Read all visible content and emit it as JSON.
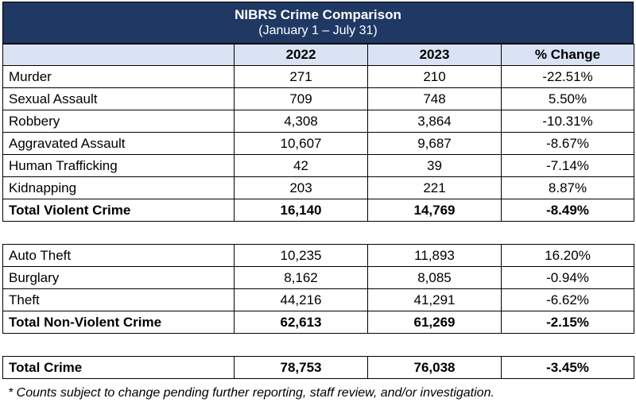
{
  "title": "NIBRS Crime Comparison",
  "subtitle": "(January 1 – July 31)",
  "chart_data": {
    "type": "table",
    "columns": [
      "",
      "2022",
      "2023",
      "% Change"
    ],
    "groups": [
      {
        "rows": [
          {
            "label": "Murder",
            "v2022": "271",
            "v2023": "210",
            "change": "-22.51%"
          },
          {
            "label": "Sexual Assault",
            "v2022": "709",
            "v2023": "748",
            "change": "5.50%"
          },
          {
            "label": "Robbery",
            "v2022": "4,308",
            "v2023": "3,864",
            "change": "-10.31%"
          },
          {
            "label": "Aggravated Assault",
            "v2022": "10,607",
            "v2023": "9,687",
            "change": "-8.67%"
          },
          {
            "label": "Human Trafficking",
            "v2022": "42",
            "v2023": "39",
            "change": "-7.14%"
          },
          {
            "label": "Kidnapping",
            "v2022": "203",
            "v2023": "221",
            "change": "8.87%"
          }
        ],
        "total": {
          "label": "Total Violent Crime",
          "v2022": "16,140",
          "v2023": "14,769",
          "change": "-8.49%"
        }
      },
      {
        "rows": [
          {
            "label": "Auto Theft",
            "v2022": "10,235",
            "v2023": "11,893",
            "change": "16.20%"
          },
          {
            "label": "Burglary",
            "v2022": "8,162",
            "v2023": "8,085",
            "change": "-0.94%"
          },
          {
            "label": "Theft",
            "v2022": "44,216",
            "v2023": "41,291",
            "change": "-6.62%"
          }
        ],
        "total": {
          "label": "Total Non-Violent Crime",
          "v2022": "62,613",
          "v2023": "61,269",
          "change": "-2.15%"
        }
      },
      {
        "rows": [],
        "total": {
          "label": "Total Crime",
          "v2022": "78,753",
          "v2023": "76,038",
          "change": "-3.45%"
        }
      }
    ]
  },
  "footnote": "* Counts subject to change pending further reporting, staff review, and/or investigation.",
  "colors": {
    "banner": "#203864",
    "header_fill": "#dae3f3"
  }
}
